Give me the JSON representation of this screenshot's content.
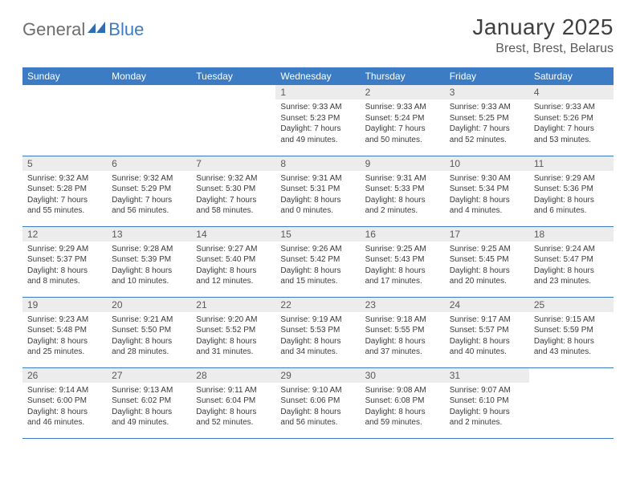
{
  "logo": {
    "text1": "General",
    "text2": "Blue"
  },
  "title": "January 2025",
  "location": "Brest, Brest, Belarus",
  "colors": {
    "header_bg": "#3b7cc4",
    "header_text": "#ffffff",
    "daynum_bg": "#ececec",
    "daynum_text": "#595959",
    "body_text": "#3a3a3a",
    "border": "#3b7cc4",
    "title_text": "#404040",
    "logo_gray": "#6d6d6d",
    "logo_blue": "#3b7cc4"
  },
  "days_of_week": [
    "Sunday",
    "Monday",
    "Tuesday",
    "Wednesday",
    "Thursday",
    "Friday",
    "Saturday"
  ],
  "weeks": [
    [
      {
        "n": "",
        "sr": "",
        "ss": "",
        "dl": ""
      },
      {
        "n": "",
        "sr": "",
        "ss": "",
        "dl": ""
      },
      {
        "n": "",
        "sr": "",
        "ss": "",
        "dl": ""
      },
      {
        "n": "1",
        "sr": "9:33 AM",
        "ss": "5:23 PM",
        "dl": "7 hours and 49 minutes."
      },
      {
        "n": "2",
        "sr": "9:33 AM",
        "ss": "5:24 PM",
        "dl": "7 hours and 50 minutes."
      },
      {
        "n": "3",
        "sr": "9:33 AM",
        "ss": "5:25 PM",
        "dl": "7 hours and 52 minutes."
      },
      {
        "n": "4",
        "sr": "9:33 AM",
        "ss": "5:26 PM",
        "dl": "7 hours and 53 minutes."
      }
    ],
    [
      {
        "n": "5",
        "sr": "9:32 AM",
        "ss": "5:28 PM",
        "dl": "7 hours and 55 minutes."
      },
      {
        "n": "6",
        "sr": "9:32 AM",
        "ss": "5:29 PM",
        "dl": "7 hours and 56 minutes."
      },
      {
        "n": "7",
        "sr": "9:32 AM",
        "ss": "5:30 PM",
        "dl": "7 hours and 58 minutes."
      },
      {
        "n": "8",
        "sr": "9:31 AM",
        "ss": "5:31 PM",
        "dl": "8 hours and 0 minutes."
      },
      {
        "n": "9",
        "sr": "9:31 AM",
        "ss": "5:33 PM",
        "dl": "8 hours and 2 minutes."
      },
      {
        "n": "10",
        "sr": "9:30 AM",
        "ss": "5:34 PM",
        "dl": "8 hours and 4 minutes."
      },
      {
        "n": "11",
        "sr": "9:29 AM",
        "ss": "5:36 PM",
        "dl": "8 hours and 6 minutes."
      }
    ],
    [
      {
        "n": "12",
        "sr": "9:29 AM",
        "ss": "5:37 PM",
        "dl": "8 hours and 8 minutes."
      },
      {
        "n": "13",
        "sr": "9:28 AM",
        "ss": "5:39 PM",
        "dl": "8 hours and 10 minutes."
      },
      {
        "n": "14",
        "sr": "9:27 AM",
        "ss": "5:40 PM",
        "dl": "8 hours and 12 minutes."
      },
      {
        "n": "15",
        "sr": "9:26 AM",
        "ss": "5:42 PM",
        "dl": "8 hours and 15 minutes."
      },
      {
        "n": "16",
        "sr": "9:25 AM",
        "ss": "5:43 PM",
        "dl": "8 hours and 17 minutes."
      },
      {
        "n": "17",
        "sr": "9:25 AM",
        "ss": "5:45 PM",
        "dl": "8 hours and 20 minutes."
      },
      {
        "n": "18",
        "sr": "9:24 AM",
        "ss": "5:47 PM",
        "dl": "8 hours and 23 minutes."
      }
    ],
    [
      {
        "n": "19",
        "sr": "9:23 AM",
        "ss": "5:48 PM",
        "dl": "8 hours and 25 minutes."
      },
      {
        "n": "20",
        "sr": "9:21 AM",
        "ss": "5:50 PM",
        "dl": "8 hours and 28 minutes."
      },
      {
        "n": "21",
        "sr": "9:20 AM",
        "ss": "5:52 PM",
        "dl": "8 hours and 31 minutes."
      },
      {
        "n": "22",
        "sr": "9:19 AM",
        "ss": "5:53 PM",
        "dl": "8 hours and 34 minutes."
      },
      {
        "n": "23",
        "sr": "9:18 AM",
        "ss": "5:55 PM",
        "dl": "8 hours and 37 minutes."
      },
      {
        "n": "24",
        "sr": "9:17 AM",
        "ss": "5:57 PM",
        "dl": "8 hours and 40 minutes."
      },
      {
        "n": "25",
        "sr": "9:15 AM",
        "ss": "5:59 PM",
        "dl": "8 hours and 43 minutes."
      }
    ],
    [
      {
        "n": "26",
        "sr": "9:14 AM",
        "ss": "6:00 PM",
        "dl": "8 hours and 46 minutes."
      },
      {
        "n": "27",
        "sr": "9:13 AM",
        "ss": "6:02 PM",
        "dl": "8 hours and 49 minutes."
      },
      {
        "n": "28",
        "sr": "9:11 AM",
        "ss": "6:04 PM",
        "dl": "8 hours and 52 minutes."
      },
      {
        "n": "29",
        "sr": "9:10 AM",
        "ss": "6:06 PM",
        "dl": "8 hours and 56 minutes."
      },
      {
        "n": "30",
        "sr": "9:08 AM",
        "ss": "6:08 PM",
        "dl": "8 hours and 59 minutes."
      },
      {
        "n": "31",
        "sr": "9:07 AM",
        "ss": "6:10 PM",
        "dl": "9 hours and 2 minutes."
      },
      {
        "n": "",
        "sr": "",
        "ss": "",
        "dl": ""
      }
    ]
  ],
  "labels": {
    "sunrise": "Sunrise:",
    "sunset": "Sunset:",
    "daylight": "Daylight:"
  }
}
